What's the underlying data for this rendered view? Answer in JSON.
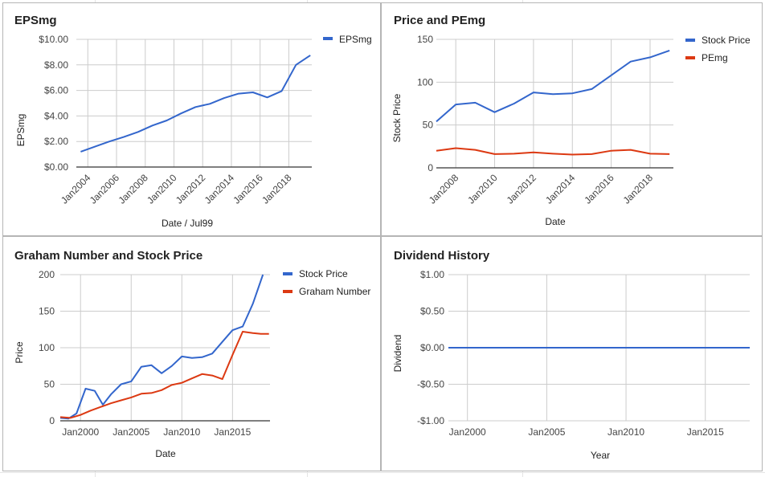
{
  "chart_data": [
    {
      "type": "line",
      "title": "EPSmg",
      "xlabel": "Date / Jul99",
      "ylabel": "EPSmg",
      "x_ticks": [
        "Jan2004",
        "Jan2006",
        "Jan2008",
        "Jan2010",
        "Jan2012",
        "Jan2014",
        "Jan2016",
        "Jan2018"
      ],
      "x_tick_values": [
        2004,
        2006,
        2008,
        2010,
        2012,
        2014,
        2016,
        2018
      ],
      "xlim": [
        2003.2,
        2019.6
      ],
      "y_ticks": [
        "$0.00",
        "$2.00",
        "$4.00",
        "$6.00",
        "$8.00",
        "$10.00"
      ],
      "y_tick_values": [
        0,
        2,
        4,
        6,
        8,
        10
      ],
      "ylim": [
        0,
        10
      ],
      "grid": true,
      "legend": "right",
      "series": [
        {
          "name": "EPSmg",
          "color": "#3366cc",
          "x": [
            2003.5,
            2004.5,
            2005.5,
            2006.5,
            2007.5,
            2008.5,
            2009.5,
            2010.5,
            2011.5,
            2012.5,
            2013.5,
            2014.5,
            2015.5,
            2016.5,
            2017.5,
            2018.5,
            2019.5
          ],
          "values": [
            1.2,
            1.6,
            2.0,
            2.35,
            2.75,
            3.25,
            3.65,
            4.2,
            4.7,
            4.95,
            5.4,
            5.75,
            5.85,
            5.45,
            5.95,
            8.0,
            8.75
          ]
        }
      ]
    },
    {
      "type": "line",
      "title": "Price and PEmg",
      "xlabel": "Date",
      "ylabel": "Stock Price",
      "x_ticks": [
        "Jan2008",
        "Jan2010",
        "Jan2012",
        "Jan2014",
        "Jan2016",
        "Jan2018"
      ],
      "x_tick_values": [
        2008,
        2010,
        2012,
        2014,
        2016,
        2018
      ],
      "xlim": [
        2007.0,
        2019.2
      ],
      "y_ticks": [
        "0",
        "50",
        "100",
        "150"
      ],
      "y_tick_values": [
        0,
        50,
        100,
        150
      ],
      "ylim": [
        0,
        150
      ],
      "grid": true,
      "legend": "right",
      "series": [
        {
          "name": "Stock Price",
          "color": "#3366cc",
          "x": [
            2007.0,
            2008.0,
            2009.0,
            2010.0,
            2011.0,
            2012.0,
            2013.0,
            2014.0,
            2015.0,
            2016.0,
            2017.0,
            2018.0,
            2019.0
          ],
          "values": [
            54,
            74,
            76,
            65,
            75,
            88,
            86,
            87,
            92,
            108,
            124,
            129,
            137
          ]
        },
        {
          "name": "PEmg",
          "color": "#dc3912",
          "x": [
            2007.0,
            2008.0,
            2009.0,
            2010.0,
            2011.0,
            2012.0,
            2013.0,
            2014.0,
            2015.0,
            2016.0,
            2017.0,
            2018.0,
            2019.0
          ],
          "values": [
            20,
            23,
            21,
            16,
            16.5,
            18,
            16.5,
            15.5,
            16,
            20,
            21,
            16.5,
            16
          ]
        }
      ]
    },
    {
      "type": "line",
      "title": "Graham Number and Stock Price",
      "xlabel": "Date",
      "ylabel": "Price",
      "x_ticks": [
        "Jan2000",
        "Jan2005",
        "Jan2010",
        "Jan2015"
      ],
      "x_tick_values": [
        2000,
        2005,
        2010,
        2015
      ],
      "xlim": [
        1998.0,
        2018.7
      ],
      "y_ticks": [
        "0",
        "50",
        "100",
        "150",
        "200"
      ],
      "y_tick_values": [
        0,
        50,
        100,
        150,
        200
      ],
      "ylim": [
        0,
        200
      ],
      "grid": true,
      "legend": "right",
      "series": [
        {
          "name": "Stock Price",
          "color": "#3366cc",
          "x": [
            1998.0,
            1998.8,
            1999.6,
            2000.5,
            2001.4,
            2002.2,
            2003.0,
            2004.0,
            2005.0,
            2006.0,
            2007.0,
            2008.0,
            2009.0,
            2010.0,
            2011.0,
            2012.0,
            2013.0,
            2014.0,
            2015.0,
            2016.0,
            2017.0,
            2018.0
          ],
          "values": [
            4,
            3,
            10,
            44,
            41,
            22,
            36,
            50,
            54,
            74,
            76,
            65,
            75,
            88,
            86,
            87,
            92,
            108,
            124,
            129,
            160,
            200
          ]
        },
        {
          "name": "Graham Number",
          "color": "#dc3912",
          "x": [
            1998.0,
            1999.0,
            2000.0,
            2001.0,
            2002.0,
            2003.0,
            2004.0,
            2005.0,
            2006.0,
            2007.0,
            2008.0,
            2009.0,
            2010.0,
            2011.0,
            2012.0,
            2013.0,
            2014.0,
            2015.0,
            2016.0,
            2017.0,
            2017.8,
            2018.6
          ],
          "values": [
            5,
            4,
            8,
            14,
            19,
            24,
            28,
            32,
            37,
            38,
            42,
            49,
            52,
            58,
            64,
            62,
            57,
            90,
            122,
            120,
            119,
            119
          ]
        }
      ]
    },
    {
      "type": "line",
      "title": "Dividend History",
      "xlabel": "Year",
      "ylabel": "Dividend",
      "x_ticks": [
        "Jan2000",
        "Jan2005",
        "Jan2010",
        "Jan2015"
      ],
      "x_tick_values": [
        2000,
        2005,
        2010,
        2015
      ],
      "xlim": [
        1998.8,
        2017.8
      ],
      "y_ticks": [
        "-$1.00",
        "-$0.50",
        "$0.00",
        "$0.50",
        "$1.00"
      ],
      "y_tick_values": [
        -1,
        -0.5,
        0,
        0.5,
        1
      ],
      "ylim": [
        -1,
        1
      ],
      "grid": true,
      "legend": "none",
      "series": [
        {
          "name": "",
          "color": "#3366cc",
          "x": [
            1998.8,
            2017.8
          ],
          "values": [
            0,
            0
          ]
        }
      ]
    }
  ]
}
